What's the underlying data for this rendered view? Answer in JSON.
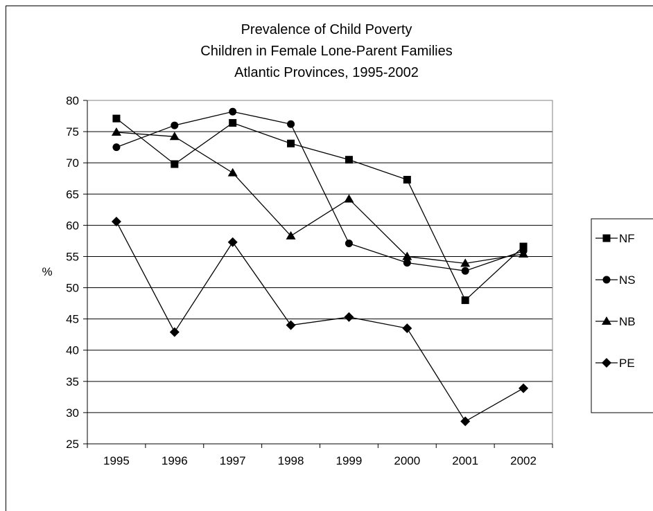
{
  "chart_data": {
    "type": "line",
    "title": [
      "Prevalence of Child Poverty",
      "Children in Female Lone-Parent Families",
      "Atlantic Provinces, 1995-2002"
    ],
    "xlabel": "",
    "ylabel": "%",
    "categories": [
      "1995",
      "1996",
      "1997",
      "1998",
      "1999",
      "2000",
      "2001",
      "2002"
    ],
    "ylim": [
      25,
      80
    ],
    "yticks": [
      25,
      30,
      35,
      40,
      45,
      50,
      55,
      60,
      65,
      70,
      75,
      80
    ],
    "grid": "horizontal",
    "legend_position": "right",
    "series": [
      {
        "name": "NF",
        "marker": "square",
        "values": [
          77.1,
          69.8,
          76.4,
          73.1,
          70.5,
          67.3,
          48.0,
          56.6
        ]
      },
      {
        "name": "NS",
        "marker": "circle",
        "values": [
          72.5,
          76.0,
          78.2,
          76.2,
          57.1,
          54.0,
          52.7,
          55.9
        ]
      },
      {
        "name": "NB",
        "marker": "triangle",
        "values": [
          74.9,
          74.2,
          68.4,
          58.3,
          64.2,
          55.0,
          53.9,
          55.4
        ]
      },
      {
        "name": "PE",
        "marker": "diamond",
        "values": [
          60.6,
          42.9,
          57.3,
          44.0,
          45.3,
          43.5,
          28.6,
          33.9
        ]
      }
    ]
  }
}
